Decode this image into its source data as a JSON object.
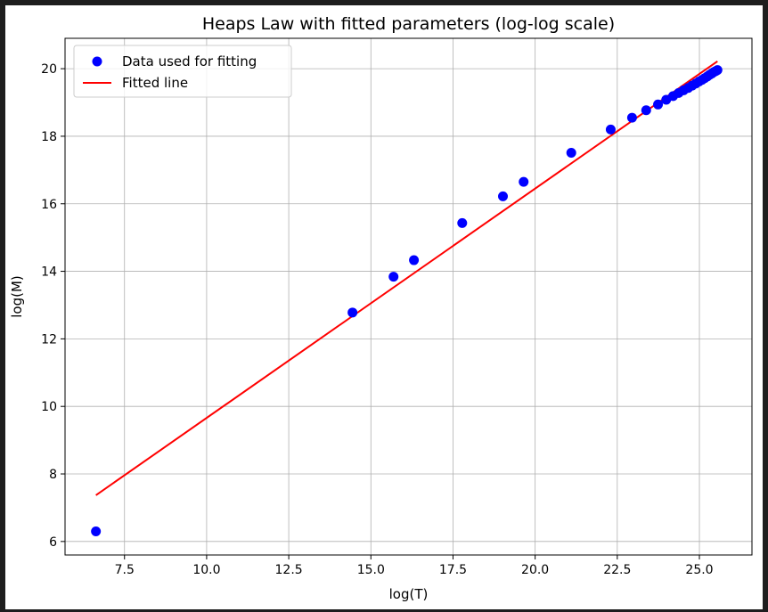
{
  "chart_data": {
    "type": "scatter",
    "title": "Heaps Law with fitted parameters (log-log scale)",
    "xlabel": "log(T)",
    "ylabel": "log(M)",
    "xlim": [
      5.69,
      26.6
    ],
    "ylim": [
      5.6,
      20.9
    ],
    "xticks": [
      7.5,
      10.0,
      12.5,
      15.0,
      17.5,
      20.0,
      22.5,
      25.0
    ],
    "xtick_labels": [
      "7.5",
      "10.0",
      "12.5",
      "15.0",
      "17.5",
      "20.0",
      "22.5",
      "25.0"
    ],
    "yticks": [
      6,
      8,
      10,
      12,
      14,
      16,
      18,
      20
    ],
    "ytick_labels": [
      "6",
      "8",
      "10",
      "12",
      "14",
      "16",
      "18",
      "20"
    ],
    "grid": true,
    "legend_position": "top-left",
    "series": [
      {
        "name": "Data used for fitting",
        "kind": "scatter",
        "color": "#0000ff",
        "points": [
          [
            6.63,
            6.3
          ],
          [
            14.44,
            12.78
          ],
          [
            15.69,
            13.84
          ],
          [
            16.31,
            14.33
          ],
          [
            17.78,
            15.43
          ],
          [
            19.02,
            16.22
          ],
          [
            19.65,
            16.65
          ],
          [
            21.1,
            17.51
          ],
          [
            22.3,
            18.2
          ],
          [
            22.95,
            18.55
          ],
          [
            23.38,
            18.77
          ],
          [
            23.74,
            18.94
          ],
          [
            23.99,
            19.08
          ],
          [
            24.2,
            19.19
          ],
          [
            24.37,
            19.28
          ],
          [
            24.52,
            19.36
          ],
          [
            24.66,
            19.43
          ],
          [
            24.78,
            19.5
          ],
          [
            24.89,
            19.56
          ],
          [
            24.99,
            19.62
          ],
          [
            25.08,
            19.67
          ],
          [
            25.16,
            19.72
          ],
          [
            25.24,
            19.77
          ],
          [
            25.31,
            19.82
          ],
          [
            25.38,
            19.86
          ],
          [
            25.44,
            19.9
          ],
          [
            25.5,
            19.93
          ],
          [
            25.55,
            19.96
          ]
        ]
      },
      {
        "name": "Fitted line",
        "kind": "line",
        "color": "#ff0000",
        "points": [
          [
            6.63,
            7.37
          ],
          [
            25.55,
            20.22
          ]
        ]
      }
    ]
  }
}
